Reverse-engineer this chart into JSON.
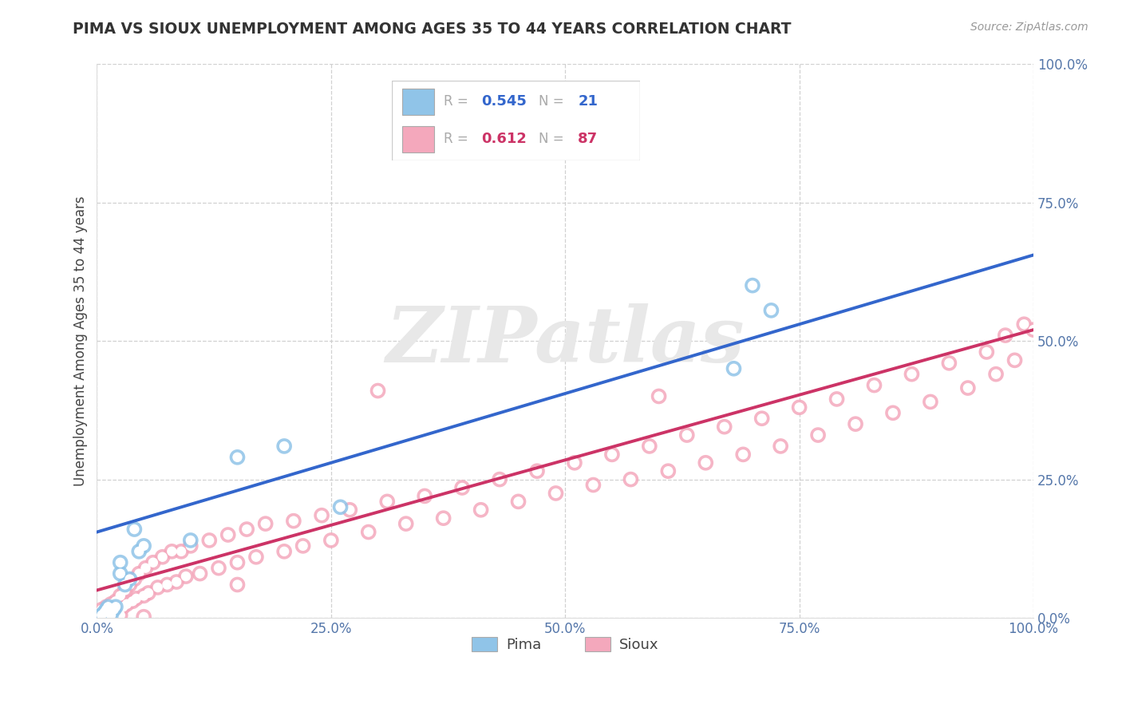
{
  "title": "PIMA VS SIOUX UNEMPLOYMENT AMONG AGES 35 TO 44 YEARS CORRELATION CHART",
  "source": "Source: ZipAtlas.com",
  "ylabel": "Unemployment Among Ages 35 to 44 years",
  "xlim": [
    0.0,
    1.0
  ],
  "ylim": [
    0.0,
    1.0
  ],
  "xticks": [
    0.0,
    0.25,
    0.5,
    0.75,
    1.0
  ],
  "yticks": [
    0.0,
    0.25,
    0.5,
    0.75,
    1.0
  ],
  "xticklabels": [
    "0.0%",
    "25.0%",
    "50.0%",
    "75.0%",
    "100.0%"
  ],
  "yticklabels": [
    "0.0%",
    "25.0%",
    "50.0%",
    "75.0%",
    "100.0%"
  ],
  "pima_color": "#90c4e8",
  "sioux_color": "#f4a8bc",
  "pima_line_color": "#3366cc",
  "sioux_line_color": "#cc3366",
  "pima_R": 0.545,
  "pima_N": 21,
  "sioux_R": 0.612,
  "sioux_N": 87,
  "watermark": "ZIPatlas",
  "background_color": "#ffffff",
  "grid_color": "#cccccc",
  "pima_line_y0": 0.155,
  "pima_line_y1": 0.655,
  "sioux_line_y0": 0.05,
  "sioux_line_y1": 0.52,
  "pima_x": [
    0.005,
    0.008,
    0.01,
    0.012,
    0.015,
    0.018,
    0.02,
    0.025,
    0.025,
    0.03,
    0.035,
    0.04,
    0.045,
    0.05,
    0.1,
    0.15,
    0.2,
    0.26,
    0.68,
    0.7,
    0.72
  ],
  "pima_y": [
    0.005,
    0.01,
    0.015,
    0.02,
    0.005,
    0.015,
    0.02,
    0.08,
    0.1,
    0.06,
    0.07,
    0.16,
    0.12,
    0.13,
    0.14,
    0.29,
    0.31,
    0.2,
    0.45,
    0.6,
    0.555
  ],
  "sioux_x": [
    0.005,
    0.008,
    0.01,
    0.012,
    0.015,
    0.018,
    0.02,
    0.022,
    0.025,
    0.028,
    0.03,
    0.032,
    0.035,
    0.038,
    0.04,
    0.042,
    0.045,
    0.05,
    0.052,
    0.055,
    0.06,
    0.065,
    0.07,
    0.075,
    0.08,
    0.085,
    0.09,
    0.095,
    0.1,
    0.11,
    0.12,
    0.13,
    0.14,
    0.15,
    0.16,
    0.17,
    0.18,
    0.2,
    0.21,
    0.22,
    0.24,
    0.25,
    0.27,
    0.29,
    0.31,
    0.33,
    0.35,
    0.37,
    0.39,
    0.41,
    0.43,
    0.45,
    0.47,
    0.49,
    0.51,
    0.53,
    0.55,
    0.57,
    0.59,
    0.61,
    0.63,
    0.65,
    0.67,
    0.69,
    0.71,
    0.73,
    0.75,
    0.77,
    0.79,
    0.81,
    0.83,
    0.85,
    0.87,
    0.89,
    0.91,
    0.93,
    0.95,
    0.96,
    0.97,
    0.98,
    0.99,
    1.0,
    0.025,
    0.05,
    0.15,
    0.3,
    0.6
  ],
  "sioux_y": [
    0.015,
    0.005,
    0.02,
    0.01,
    0.025,
    0.015,
    0.03,
    0.01,
    0.04,
    0.02,
    0.05,
    0.025,
    0.06,
    0.03,
    0.07,
    0.035,
    0.08,
    0.04,
    0.09,
    0.045,
    0.1,
    0.055,
    0.11,
    0.06,
    0.12,
    0.065,
    0.12,
    0.075,
    0.13,
    0.08,
    0.14,
    0.09,
    0.15,
    0.1,
    0.16,
    0.11,
    0.17,
    0.12,
    0.175,
    0.13,
    0.185,
    0.14,
    0.195,
    0.155,
    0.21,
    0.17,
    0.22,
    0.18,
    0.235,
    0.195,
    0.25,
    0.21,
    0.265,
    0.225,
    0.28,
    0.24,
    0.295,
    0.25,
    0.31,
    0.265,
    0.33,
    0.28,
    0.345,
    0.295,
    0.36,
    0.31,
    0.38,
    0.33,
    0.395,
    0.35,
    0.42,
    0.37,
    0.44,
    0.39,
    0.46,
    0.415,
    0.48,
    0.44,
    0.51,
    0.465,
    0.53,
    0.52,
    0.005,
    0.002,
    0.06,
    0.41,
    0.4
  ]
}
